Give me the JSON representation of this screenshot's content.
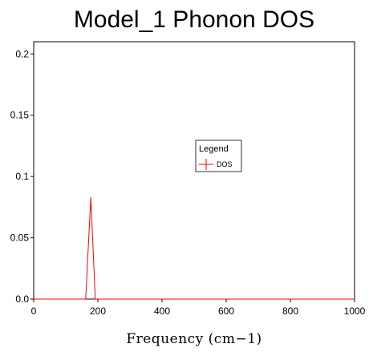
{
  "chart_data": {
    "type": "line",
    "title": "Model_1 Phonon DOS",
    "xlabel": "Frequency (cm−1)",
    "ylabel": "",
    "xlim": [
      0,
      1000
    ],
    "ylim": [
      0,
      0.21
    ],
    "xticks": [
      0,
      200,
      400,
      600,
      800,
      1000
    ],
    "yticks": [
      0,
      0.05,
      0.1,
      0.15,
      0.2
    ],
    "xtick_labels": [
      "0",
      "200",
      "400",
      "600",
      "800",
      "1000"
    ],
    "ytick_labels": [
      "0.0",
      "0.05",
      "0.1",
      "0.15",
      "0.2"
    ],
    "grid": false,
    "legend": {
      "title": "Legend",
      "placement": "center-right"
    },
    "series": [
      {
        "name": "DOS",
        "color": "#ff0000",
        "x": [
          0,
          162,
          178,
          192,
          1000
        ],
        "y": [
          0,
          0,
          0.083,
          0,
          0
        ]
      }
    ]
  }
}
